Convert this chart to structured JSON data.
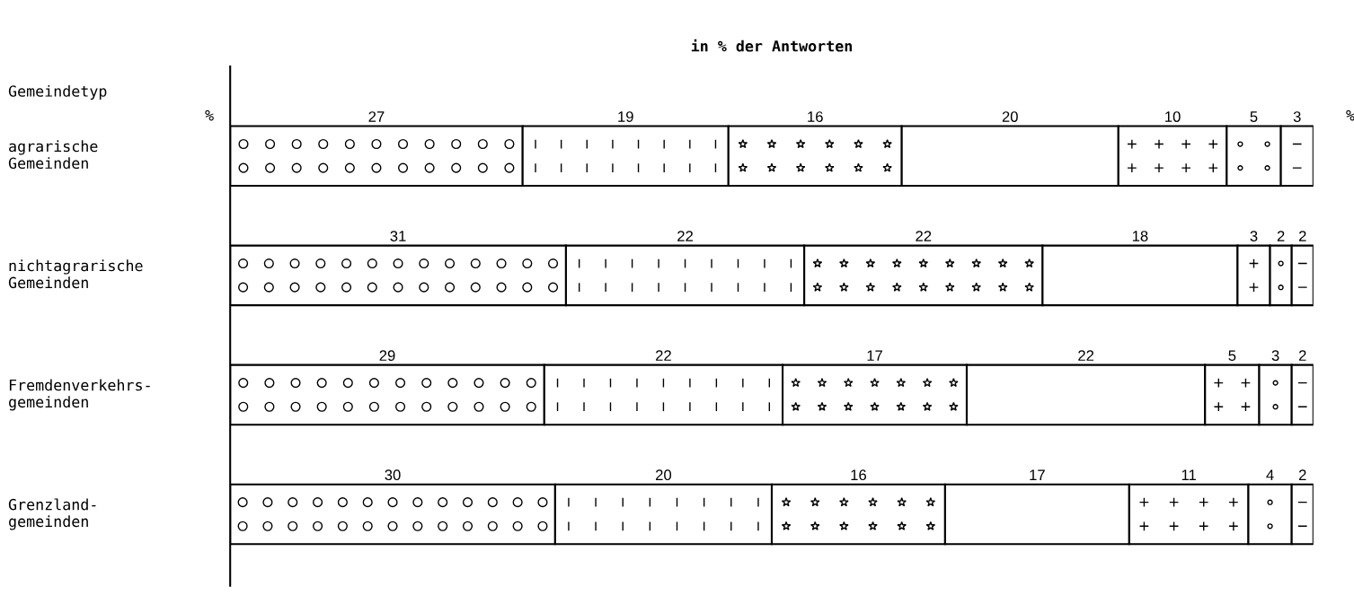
{
  "chart_data": {
    "type": "bar",
    "orientation": "horizontal",
    "stacked": true,
    "title": "in % der Antworten",
    "ylabel": "Gemeindetyp",
    "categories": [
      "agrarische\nGemeinden",
      "nichtagrarische\nGemeinden",
      "Fremdenverkehrs-\ngemeinden",
      "Grenzland-\ngemeinden"
    ],
    "series": [
      {
        "color": "#ffffff",
        "values": [
          27,
          31,
          29,
          30
        ]
      },
      {
        "color": "#ffffff",
        "values": [
          19,
          22,
          22,
          20
        ]
      },
      {
        "color": "#ffffff",
        "values": [
          16,
          22,
          17,
          16
        ]
      },
      {
        "color": "#ffffff",
        "values": [
          20,
          18,
          22,
          17
        ]
      },
      {
        "color": "#ffffff",
        "values": [
          10,
          3,
          5,
          11
        ]
      },
      {
        "color": "#ffffff",
        "values": [
          5,
          2,
          3,
          4
        ]
      },
      {
        "color": "#ffffff",
        "values": [
          3,
          2,
          2,
          2
        ]
      }
    ],
    "tick_labels": "y",
    "data_labels": true,
    "legend": false,
    "annotations": [
      "%",
      "%"
    ]
  }
}
